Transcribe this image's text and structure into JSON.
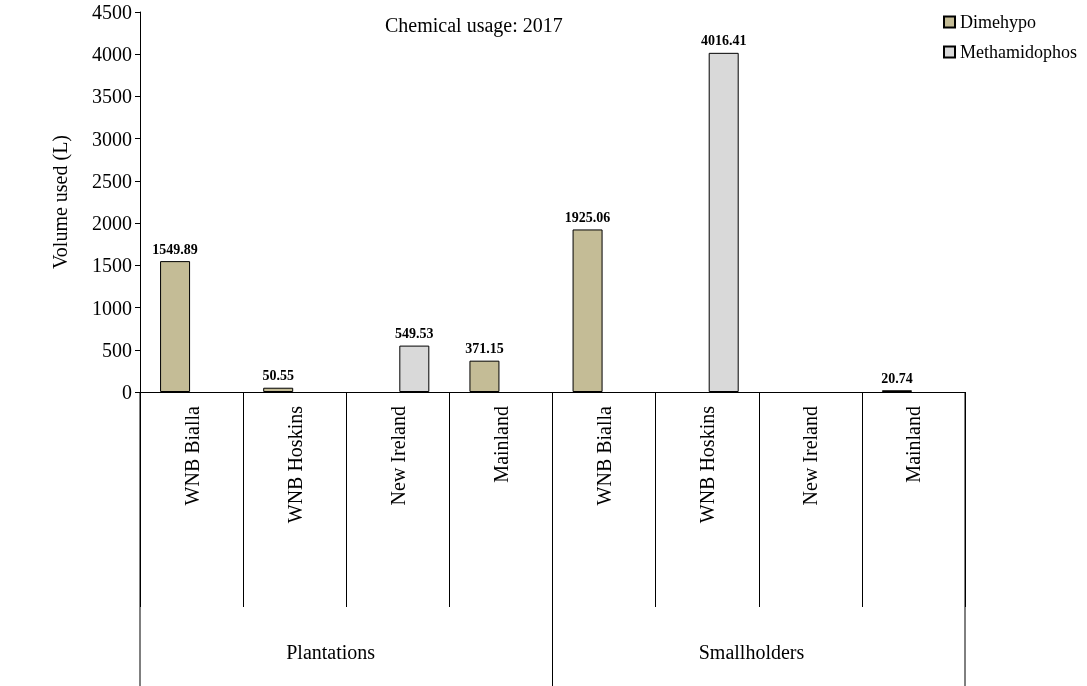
{
  "chart_data": {
    "type": "bar",
    "title": "Chemical usage: 2017",
    "ylabel": "Volume used (L)",
    "categories": [
      "WNB Bialla",
      "WNB Hoskins",
      "New Ireland",
      "Mainland",
      "WNB Bialla",
      "WNB Hoskins",
      "New Ireland",
      "Mainland"
    ],
    "series": [
      {
        "name": "Dimehypo",
        "color": "#c4bc96",
        "values": [
          1549.89,
          50.55,
          null,
          371.15,
          1925.06,
          null,
          null,
          20.74
        ]
      },
      {
        "name": "Methamidophos",
        "color": "#d9d9d9",
        "values": [
          null,
          null,
          549.53,
          null,
          null,
          4016.41,
          null,
          null
        ]
      }
    ],
    "ylim": [
      0,
      4500
    ],
    "yticks": [
      0,
      500,
      1000,
      1500,
      2000,
      2500,
      3000,
      3500,
      4000,
      4500
    ],
    "data_labels": true,
    "legend": "top right",
    "grid": false,
    "annotations": [
      "Plantations",
      "Smallholders"
    ]
  }
}
